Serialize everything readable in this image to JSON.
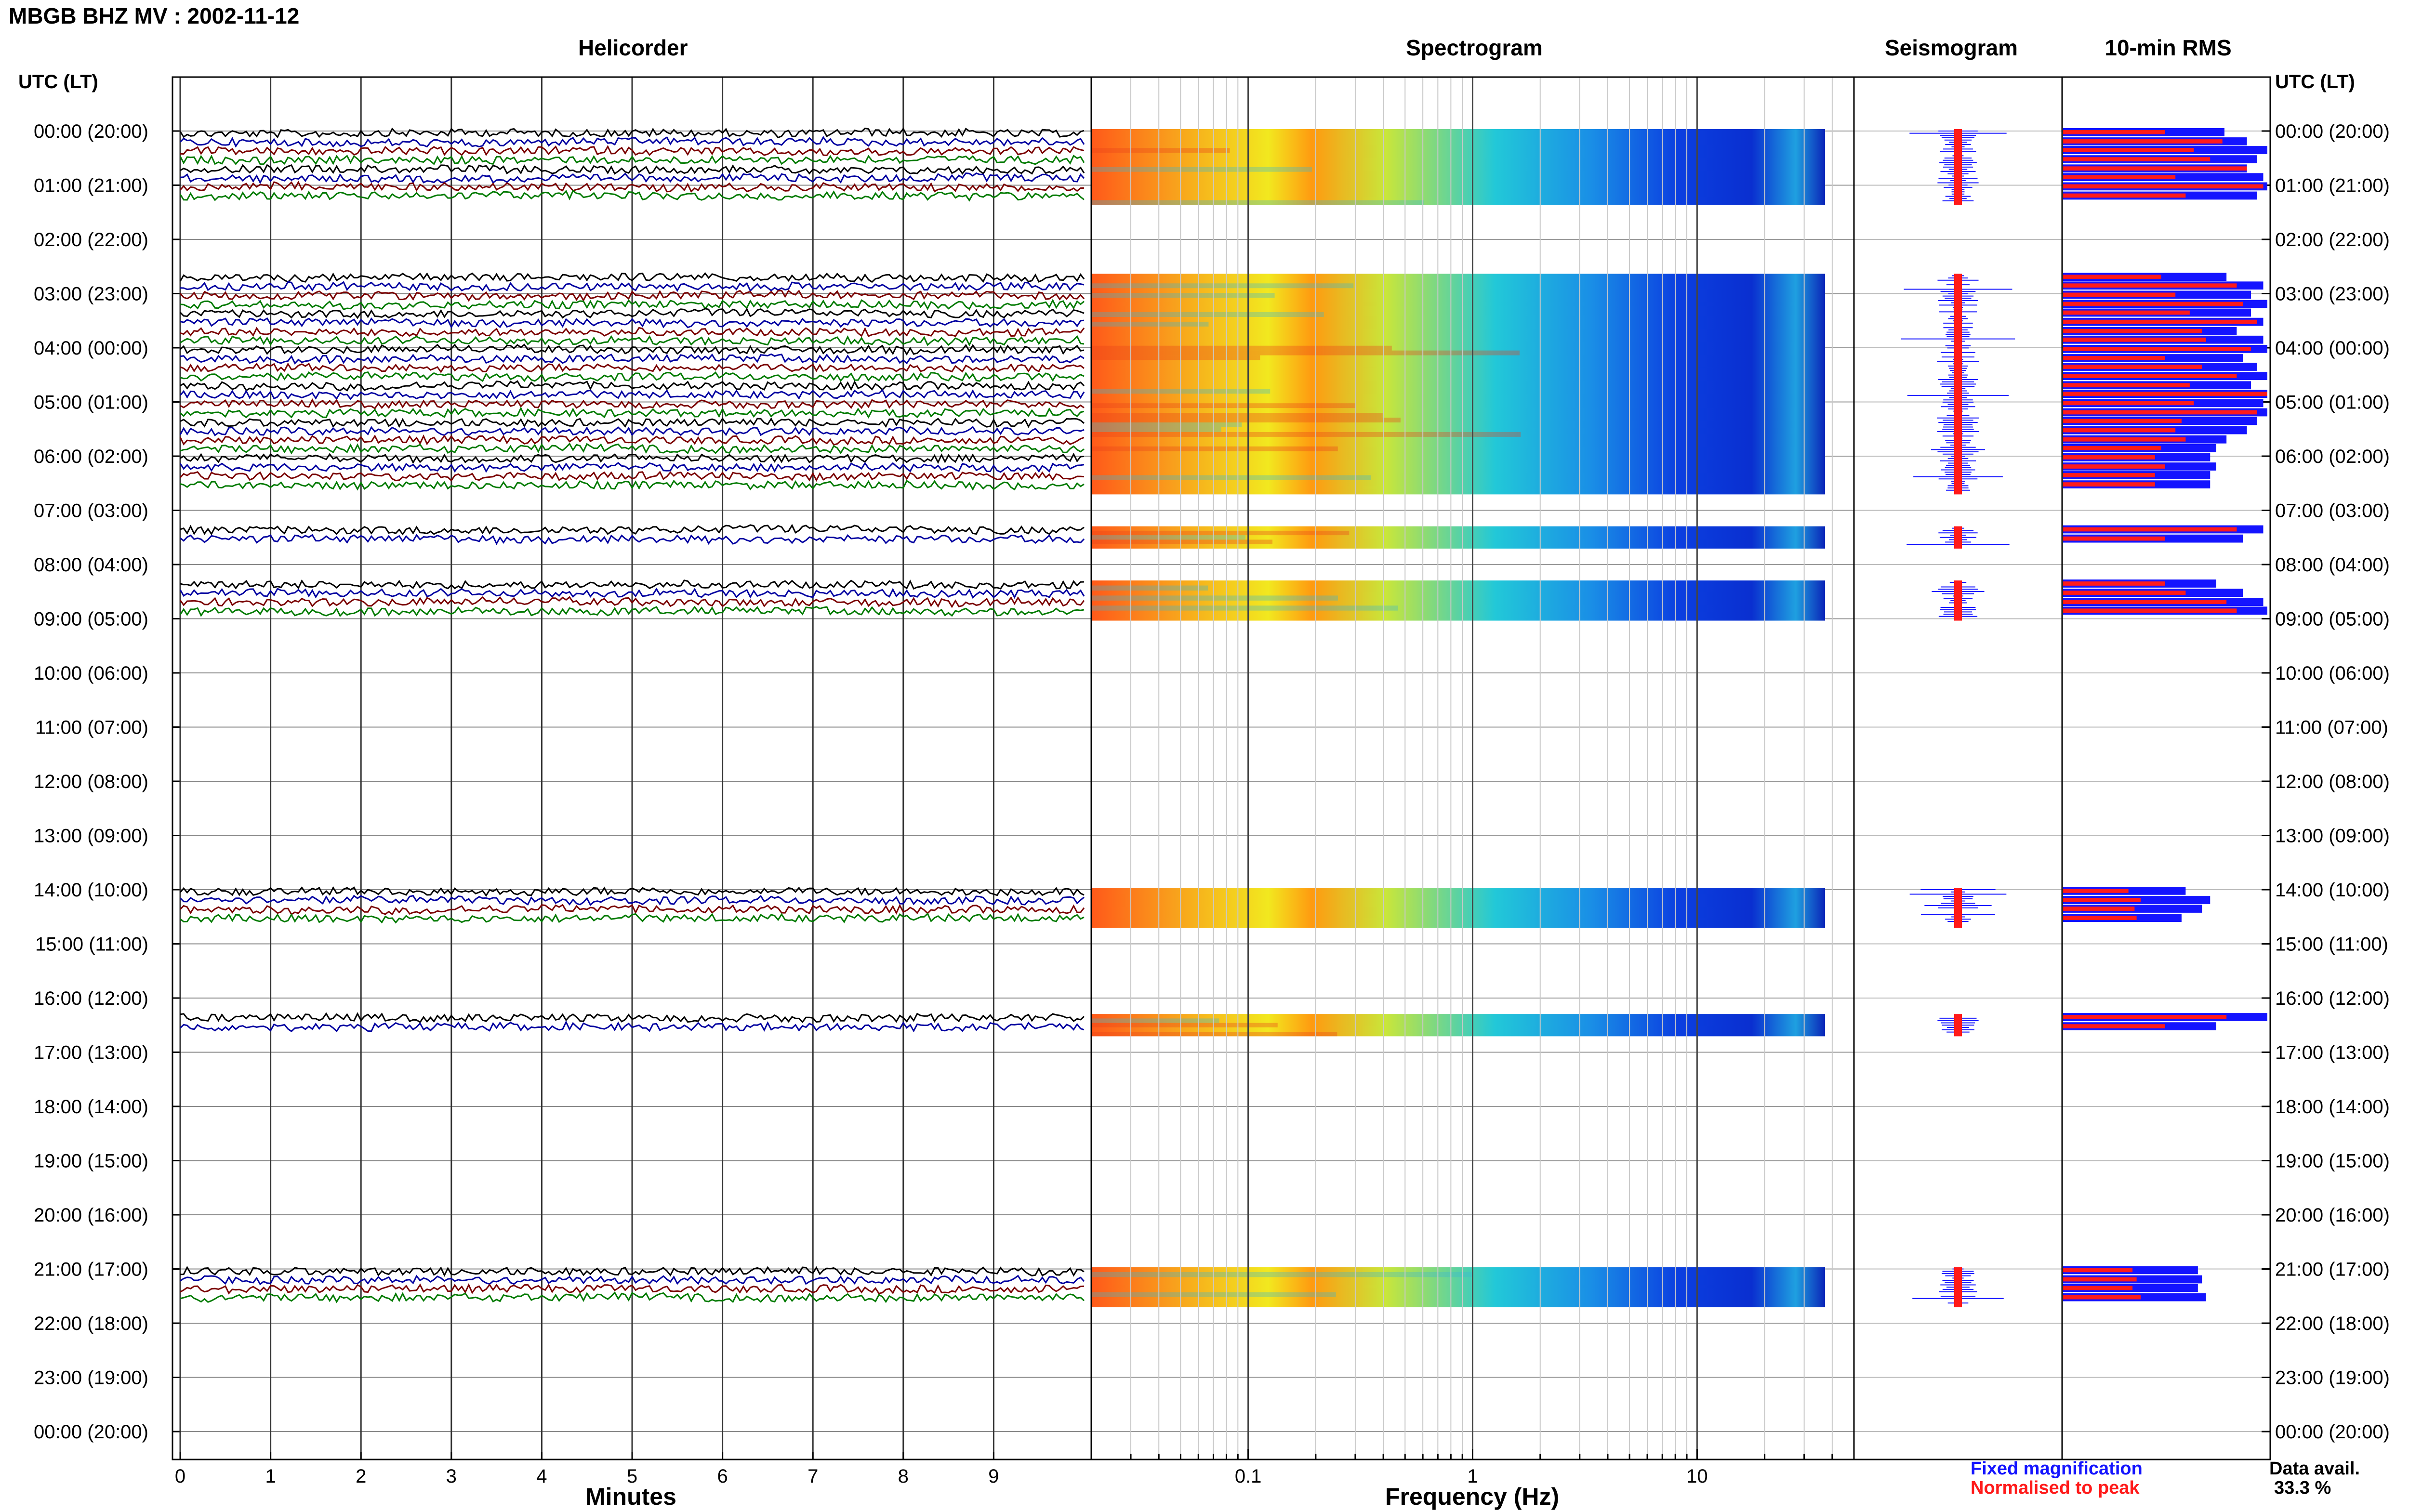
{
  "title": "MBGB BHZ MV : 2002-11-12",
  "panels": {
    "helicorder": "Helicorder",
    "spectrogram": "Spectrogram",
    "seismogram": "Seismogram",
    "rms": "10-min RMS"
  },
  "utc_header": "UTC (LT)",
  "helicorder_xlabel": "Minutes",
  "spectrogram_xlabel": "Frequency (Hz)",
  "legend": {
    "fixed": "Fixed magnification",
    "normalised": "Normalised to peak",
    "fixed_color": "#1414ff",
    "normalised_color": "#ff1a1a"
  },
  "availability": {
    "label": "Data avail.",
    "value": "33.3 %"
  },
  "trace_colors": [
    "#000000",
    "#0000a0",
    "#7a0000",
    "#007a00"
  ],
  "chart_data": {
    "type": "heatmap",
    "hour_labels": [
      "00:00 (20:00)",
      "01:00 (21:00)",
      "02:00 (22:00)",
      "03:00 (23:00)",
      "04:00 (00:00)",
      "05:00 (01:00)",
      "06:00 (02:00)",
      "07:00 (03:00)",
      "08:00 (04:00)",
      "09:00 (05:00)",
      "10:00 (06:00)",
      "11:00 (07:00)",
      "12:00 (08:00)",
      "13:00 (09:00)",
      "14:00 (10:00)",
      "15:00 (11:00)",
      "16:00 (12:00)",
      "17:00 (13:00)",
      "18:00 (14:00)",
      "19:00 (15:00)",
      "20:00 (16:00)",
      "21:00 (17:00)",
      "22:00 (18:00)",
      "23:00 (19:00)",
      "00:00 (20:00)"
    ],
    "minute_ticks": [
      0,
      1,
      2,
      3,
      4,
      5,
      6,
      7,
      8,
      9
    ],
    "minute_range": [
      0,
      10
    ],
    "freq_ticks": [
      {
        "value": 0.1,
        "label": "0.1"
      },
      {
        "value": 1,
        "label": "1"
      },
      {
        "value": 10,
        "label": "10"
      }
    ],
    "freq_range": [
      0.02,
      50
    ],
    "freq_scale": "log",
    "data_segments": [
      {
        "start_hour": 0.0,
        "end_hour": 1.33
      },
      {
        "start_hour": 2.67,
        "end_hour": 6.67
      },
      {
        "start_hour": 7.33,
        "end_hour": 7.67
      },
      {
        "start_hour": 8.33,
        "end_hour": 9.0
      },
      {
        "start_hour": 14.0,
        "end_hour": 14.67
      },
      {
        "start_hour": 16.33,
        "end_hour": 16.67
      },
      {
        "start_hour": 21.0,
        "end_hour": 21.67
      }
    ],
    "rms_10min": [
      {
        "hour": 0.0,
        "fixed": 0.79,
        "normalised": 0.5
      },
      {
        "hour": 0.17,
        "fixed": 0.9,
        "normalised": 0.78
      },
      {
        "hour": 0.33,
        "fixed": 1.0,
        "normalised": 0.64
      },
      {
        "hour": 0.5,
        "fixed": 0.95,
        "normalised": 0.72
      },
      {
        "hour": 0.67,
        "fixed": 0.9,
        "normalised": 0.9
      },
      {
        "hour": 0.83,
        "fixed": 0.98,
        "normalised": 0.55
      },
      {
        "hour": 1.0,
        "fixed": 1.0,
        "normalised": 0.98
      },
      {
        "hour": 1.17,
        "fixed": 0.95,
        "normalised": 0.6
      },
      {
        "hour": 2.67,
        "fixed": 0.8,
        "normalised": 0.48
      },
      {
        "hour": 2.83,
        "fixed": 0.98,
        "normalised": 0.85
      },
      {
        "hour": 3.0,
        "fixed": 0.92,
        "normalised": 0.55
      },
      {
        "hour": 3.17,
        "fixed": 1.0,
        "normalised": 0.88
      },
      {
        "hour": 3.33,
        "fixed": 0.92,
        "normalised": 0.62
      },
      {
        "hour": 3.5,
        "fixed": 0.98,
        "normalised": 0.95
      },
      {
        "hour": 3.67,
        "fixed": 0.85,
        "normalised": 0.68
      },
      {
        "hour": 3.83,
        "fixed": 0.98,
        "normalised": 0.7
      },
      {
        "hour": 4.0,
        "fixed": 1.0,
        "normalised": 0.92
      },
      {
        "hour": 4.17,
        "fixed": 0.88,
        "normalised": 0.5
      },
      {
        "hour": 4.33,
        "fixed": 0.95,
        "normalised": 0.68
      },
      {
        "hour": 4.5,
        "fixed": 1.0,
        "normalised": 0.85
      },
      {
        "hour": 4.67,
        "fixed": 0.92,
        "normalised": 0.62
      },
      {
        "hour": 4.83,
        "fixed": 1.0,
        "normalised": 1.0
      },
      {
        "hour": 5.0,
        "fixed": 0.98,
        "normalised": 0.64
      },
      {
        "hour": 5.17,
        "fixed": 1.0,
        "normalised": 0.95
      },
      {
        "hour": 5.33,
        "fixed": 0.95,
        "normalised": 0.58
      },
      {
        "hour": 5.5,
        "fixed": 0.9,
        "normalised": 0.55
      },
      {
        "hour": 5.67,
        "fixed": 0.8,
        "normalised": 0.6
      },
      {
        "hour": 5.83,
        "fixed": 0.75,
        "normalised": 0.48
      },
      {
        "hour": 6.0,
        "fixed": 0.72,
        "normalised": 0.45
      },
      {
        "hour": 6.17,
        "fixed": 0.75,
        "normalised": 0.5
      },
      {
        "hour": 6.33,
        "fixed": 0.72,
        "normalised": 0.45
      },
      {
        "hour": 6.5,
        "fixed": 0.72,
        "normalised": 0.45
      },
      {
        "hour": 7.33,
        "fixed": 0.98,
        "normalised": 0.85
      },
      {
        "hour": 7.5,
        "fixed": 0.88,
        "normalised": 0.5
      },
      {
        "hour": 8.33,
        "fixed": 0.75,
        "normalised": 0.5
      },
      {
        "hour": 8.5,
        "fixed": 0.88,
        "normalised": 0.6
      },
      {
        "hour": 8.67,
        "fixed": 0.98,
        "normalised": 0.8
      },
      {
        "hour": 8.83,
        "fixed": 1.0,
        "normalised": 0.85
      },
      {
        "hour": 14.0,
        "fixed": 0.6,
        "normalised": 0.32
      },
      {
        "hour": 14.17,
        "fixed": 0.72,
        "normalised": 0.38
      },
      {
        "hour": 14.33,
        "fixed": 0.68,
        "normalised": 0.35
      },
      {
        "hour": 14.5,
        "fixed": 0.58,
        "normalised": 0.36
      },
      {
        "hour": 16.33,
        "fixed": 1.0,
        "normalised": 0.8
      },
      {
        "hour": 16.5,
        "fixed": 0.75,
        "normalised": 0.5
      },
      {
        "hour": 21.0,
        "fixed": 0.66,
        "normalised": 0.34
      },
      {
        "hour": 21.17,
        "fixed": 0.68,
        "normalised": 0.36
      },
      {
        "hour": 21.33,
        "fixed": 0.66,
        "normalised": 0.34
      },
      {
        "hour": 21.5,
        "fixed": 0.7,
        "normalised": 0.38
      }
    ]
  }
}
